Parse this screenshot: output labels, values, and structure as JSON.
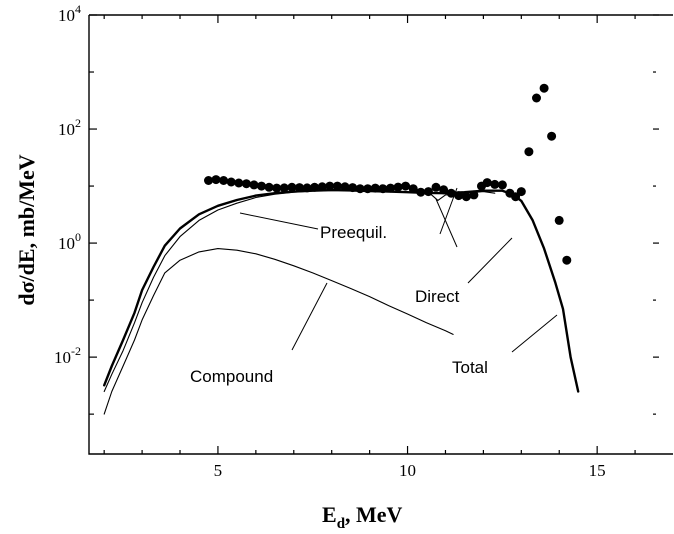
{
  "chart_data": {
    "type": "line",
    "title": "",
    "xlabel": {
      "main": "E",
      "sub": "d",
      "rest": ", MeV"
    },
    "ylabel": "dσ/dE, mb/MeV",
    "xlim": [
      1.6,
      17.0
    ],
    "ylim": [
      0.0002,
      10000
    ],
    "yscale": "log",
    "grid": false,
    "x_ticks": [
      {
        "value": 5,
        "label": "5"
      },
      {
        "value": 10,
        "label": "10"
      },
      {
        "value": 15,
        "label": "15"
      }
    ],
    "y_ticks": [
      {
        "value": 0.01,
        "base": "10",
        "exp": "-2"
      },
      {
        "value": 1,
        "base": "10",
        "exp": "0"
      },
      {
        "value": 100,
        "base": "10",
        "exp": "2"
      },
      {
        "value": 10000,
        "base": "10",
        "exp": "4"
      }
    ],
    "series": [
      {
        "key": "total",
        "style": "thick",
        "points": [
          [
            2.0,
            0.0032
          ],
          [
            2.2,
            0.007
          ],
          [
            2.5,
            0.02
          ],
          [
            2.8,
            0.06
          ],
          [
            3.0,
            0.15
          ],
          [
            3.3,
            0.38
          ],
          [
            3.6,
            0.9
          ],
          [
            4.0,
            1.8
          ],
          [
            4.5,
            3.2
          ],
          [
            5.0,
            4.5
          ],
          [
            5.5,
            5.7
          ],
          [
            6.0,
            6.8
          ],
          [
            6.5,
            7.5
          ],
          [
            7.0,
            8.0
          ],
          [
            7.5,
            8.3
          ],
          [
            8.0,
            8.5
          ],
          [
            8.5,
            8.4
          ],
          [
            9.0,
            8.2
          ],
          [
            9.5,
            8.0
          ],
          [
            10.0,
            7.8
          ],
          [
            10.5,
            7.6
          ],
          [
            11.0,
            7.5
          ],
          [
            11.5,
            7.8
          ],
          [
            12.0,
            8.3
          ],
          [
            12.5,
            8.3
          ],
          [
            12.8,
            7.0
          ],
          [
            13.0,
            5.5
          ],
          [
            13.3,
            2.5
          ],
          [
            13.6,
            0.8
          ],
          [
            13.9,
            0.2
          ],
          [
            14.1,
            0.07
          ],
          [
            14.3,
            0.01
          ],
          [
            14.5,
            0.0025
          ]
        ]
      },
      {
        "key": "preequil",
        "style": "thin",
        "points": [
          [
            2.0,
            0.0025
          ],
          [
            2.2,
            0.005
          ],
          [
            2.5,
            0.013
          ],
          [
            2.8,
            0.04
          ],
          [
            3.0,
            0.09
          ],
          [
            3.3,
            0.25
          ],
          [
            3.6,
            0.6
          ],
          [
            4.0,
            1.3
          ],
          [
            4.5,
            2.5
          ],
          [
            5.0,
            3.8
          ],
          [
            5.5,
            5.0
          ],
          [
            6.0,
            6.3
          ],
          [
            6.5,
            7.2
          ],
          [
            7.0,
            7.8
          ],
          [
            7.5,
            8.2
          ],
          [
            8.0,
            8.4
          ],
          [
            8.5,
            8.4
          ],
          [
            9.0,
            8.2
          ],
          [
            9.5,
            8.0
          ],
          [
            10.0,
            7.8
          ],
          [
            10.5,
            7.6
          ],
          [
            11.0,
            7.5
          ]
        ]
      },
      {
        "key": "direct",
        "style": "thin",
        "points": [
          [
            10.5,
            8.4
          ],
          [
            10.8,
            5.6
          ],
          [
            11.0,
            7.0
          ],
          [
            11.5,
            7.5
          ],
          [
            12.0,
            8.0
          ],
          [
            12.3,
            7.5
          ]
        ]
      },
      {
        "key": "compound",
        "style": "thin",
        "points": [
          [
            2.0,
            0.001
          ],
          [
            2.2,
            0.0025
          ],
          [
            2.5,
            0.007
          ],
          [
            2.8,
            0.02
          ],
          [
            3.0,
            0.045
          ],
          [
            3.3,
            0.12
          ],
          [
            3.6,
            0.3
          ],
          [
            4.0,
            0.5
          ],
          [
            4.5,
            0.7
          ],
          [
            5.0,
            0.8
          ],
          [
            5.5,
            0.75
          ],
          [
            6.0,
            0.65
          ],
          [
            6.5,
            0.52
          ],
          [
            7.0,
            0.4
          ],
          [
            7.5,
            0.3
          ],
          [
            8.0,
            0.22
          ],
          [
            8.5,
            0.16
          ],
          [
            9.0,
            0.115
          ],
          [
            9.5,
            0.08
          ],
          [
            10.0,
            0.057
          ],
          [
            10.5,
            0.04
          ],
          [
            11.0,
            0.029
          ],
          [
            11.2,
            0.025
          ]
        ]
      }
    ],
    "points_series": {
      "key": "experiment",
      "marker": "filled-circle",
      "points": [
        [
          4.75,
          12.5
        ],
        [
          4.95,
          13.0
        ],
        [
          5.15,
          12.5
        ],
        [
          5.35,
          11.8
        ],
        [
          5.55,
          11.3
        ],
        [
          5.75,
          11.0
        ],
        [
          5.95,
          10.5
        ],
        [
          6.15,
          10.0
        ],
        [
          6.35,
          9.5
        ],
        [
          6.55,
          9.2
        ],
        [
          6.75,
          9.3
        ],
        [
          6.95,
          9.5
        ],
        [
          7.15,
          9.4
        ],
        [
          7.35,
          9.3
        ],
        [
          7.55,
          9.5
        ],
        [
          7.75,
          9.7
        ],
        [
          7.95,
          10.0
        ],
        [
          8.15,
          10.0
        ],
        [
          8.35,
          9.7
        ],
        [
          8.55,
          9.4
        ],
        [
          8.75,
          9.0
        ],
        [
          8.95,
          9.0
        ],
        [
          9.15,
          9.2
        ],
        [
          9.35,
          9.0
        ],
        [
          9.55,
          9.2
        ],
        [
          9.75,
          9.6
        ],
        [
          9.95,
          10.0
        ],
        [
          10.15,
          9.0
        ],
        [
          10.35,
          7.8
        ],
        [
          10.55,
          8.0
        ],
        [
          10.75,
          9.5
        ],
        [
          10.95,
          8.6
        ],
        [
          11.15,
          7.5
        ],
        [
          11.35,
          6.8
        ],
        [
          11.55,
          6.5
        ],
        [
          11.75,
          7.0
        ],
        [
          11.95,
          10.0
        ],
        [
          12.1,
          11.5
        ],
        [
          12.3,
          10.7
        ],
        [
          12.5,
          10.5
        ],
        [
          12.7,
          7.5
        ],
        [
          12.85,
          6.5
        ],
        [
          13.0,
          8.0
        ],
        [
          13.2,
          40
        ],
        [
          13.4,
          350
        ],
        [
          13.6,
          520
        ],
        [
          13.8,
          75
        ],
        [
          14.0,
          2.5
        ],
        [
          14.2,
          0.5
        ]
      ]
    },
    "annotations": [
      {
        "name": "preequil",
        "text": "Preequil."
      },
      {
        "name": "direct",
        "text": "Direct"
      },
      {
        "name": "compound",
        "text": "Compound"
      },
      {
        "name": "total",
        "text": "Total"
      }
    ]
  }
}
